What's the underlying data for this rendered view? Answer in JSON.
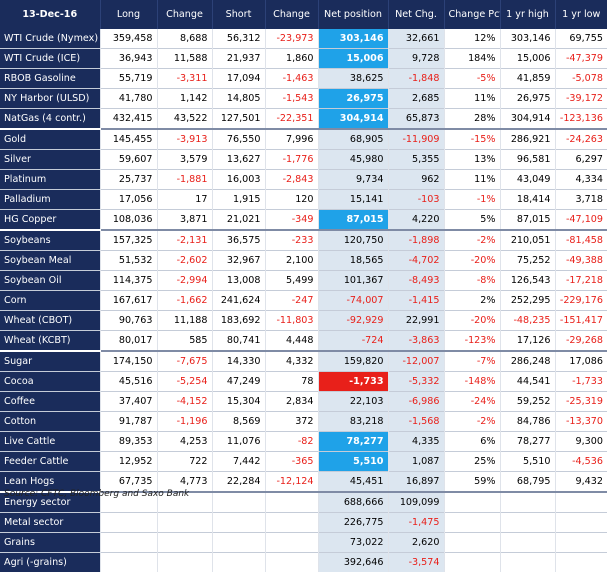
{
  "table": {
    "date": "13-Dec-16",
    "columns": [
      "Long",
      "Change",
      "Short",
      "Change",
      "Net position",
      "Net Chg.",
      "Change Pct",
      "1 yr high",
      "1 yr low"
    ],
    "rows": [
      {
        "name": "WTI Crude (Nymex)",
        "values": [
          "359,458",
          "8,688",
          "56,312",
          "-23,973",
          "303,146",
          "32,661",
          "12%",
          "303,146",
          "69,755"
        ],
        "highlight": "blue"
      },
      {
        "name": "WTI Crude (ICE)",
        "values": [
          "36,943",
          "11,588",
          "21,937",
          "1,860",
          "15,006",
          "9,728",
          "184%",
          "15,006",
          "-47,379"
        ],
        "highlight": "blue"
      },
      {
        "name": "RBOB Gasoline",
        "values": [
          "55,719",
          "-3,311",
          "17,094",
          "-1,463",
          "38,625",
          "-1,848",
          "-5%",
          "41,859",
          "-5,078"
        ]
      },
      {
        "name": "NY Harbor (ULSD)",
        "values": [
          "41,780",
          "1,142",
          "14,805",
          "-1,543",
          "26,975",
          "2,685",
          "11%",
          "26,975",
          "-39,172"
        ],
        "highlight": "blue"
      },
      {
        "name": "NatGas (4 contr.)",
        "values": [
          "432,415",
          "43,522",
          "127,501",
          "-22,351",
          "304,914",
          "65,873",
          "28%",
          "304,914",
          "-123,136"
        ],
        "highlight": "blue"
      },
      {
        "name": "Gold",
        "values": [
          "145,455",
          "-3,913",
          "76,550",
          "7,996",
          "68,905",
          "-11,909",
          "-15%",
          "286,921",
          "-24,263"
        ],
        "group_start": true
      },
      {
        "name": "Silver",
        "values": [
          "59,607",
          "3,579",
          "13,627",
          "-1,776",
          "45,980",
          "5,355",
          "13%",
          "96,581",
          "6,297"
        ]
      },
      {
        "name": "Platinum",
        "values": [
          "25,737",
          "-1,881",
          "16,003",
          "-2,843",
          "9,734",
          "962",
          "11%",
          "43,049",
          "4,334"
        ]
      },
      {
        "name": "Palladium",
        "values": [
          "17,056",
          "17",
          "1,915",
          "120",
          "15,141",
          "-103",
          "-1%",
          "18,414",
          "3,718"
        ]
      },
      {
        "name": "HG Copper",
        "values": [
          "108,036",
          "3,871",
          "21,021",
          "-349",
          "87,015",
          "4,220",
          "5%",
          "87,015",
          "-47,109"
        ],
        "highlight": "blue"
      },
      {
        "name": "Soybeans",
        "values": [
          "157,325",
          "-2,131",
          "36,575",
          "-233",
          "120,750",
          "-1,898",
          "-2%",
          "210,051",
          "-81,458"
        ],
        "group_start": true
      },
      {
        "name": "Soybean Meal",
        "values": [
          "51,532",
          "-2,602",
          "32,967",
          "2,100",
          "18,565",
          "-4,702",
          "-20%",
          "75,252",
          "-49,388"
        ]
      },
      {
        "name": "Soybean Oil",
        "values": [
          "114,375",
          "-2,994",
          "13,008",
          "5,499",
          "101,367",
          "-8,493",
          "-8%",
          "126,543",
          "-17,218"
        ]
      },
      {
        "name": "Corn",
        "values": [
          "167,617",
          "-1,662",
          "241,624",
          "-247",
          "-74,007",
          "-1,415",
          "2%",
          "252,295",
          "-229,176"
        ]
      },
      {
        "name": "Wheat (CBOT)",
        "values": [
          "90,763",
          "11,188",
          "183,692",
          "-11,803",
          "-92,929",
          "22,991",
          "-20%",
          "-48,235",
          "-151,417"
        ]
      },
      {
        "name": "Wheat (KCBT)",
        "values": [
          "80,017",
          "585",
          "80,741",
          "4,448",
          "-724",
          "-3,863",
          "-123%",
          "17,126",
          "-29,268"
        ]
      },
      {
        "name": "Sugar",
        "values": [
          "174,150",
          "-7,675",
          "14,330",
          "4,332",
          "159,820",
          "-12,007",
          "-7%",
          "286,248",
          "17,086"
        ],
        "group_start": true
      },
      {
        "name": "Cocoa",
        "values": [
          "45,516",
          "-5,254",
          "47,249",
          "78",
          "-1,733",
          "-5,332",
          "-148%",
          "44,541",
          "-1,733"
        ],
        "highlight": "red"
      },
      {
        "name": "Coffee",
        "values": [
          "37,407",
          "-4,152",
          "15,304",
          "2,834",
          "22,103",
          "-6,986",
          "-24%",
          "59,252",
          "-25,319"
        ]
      },
      {
        "name": "Cotton",
        "values": [
          "91,787",
          "-1,196",
          "8,569",
          "372",
          "83,218",
          "-1,568",
          "-2%",
          "84,786",
          "-13,370"
        ]
      },
      {
        "name": "Live Cattle",
        "values": [
          "89,353",
          "4,253",
          "11,076",
          "-82",
          "78,277",
          "4,335",
          "6%",
          "78,277",
          "9,300"
        ],
        "highlight": "blue"
      },
      {
        "name": "Feeder Cattle",
        "values": [
          "12,952",
          "722",
          "7,442",
          "-365",
          "5,510",
          "1,087",
          "25%",
          "5,510",
          "-4,536"
        ],
        "highlight": "blue"
      },
      {
        "name": "Lean Hogs",
        "values": [
          "67,735",
          "4,773",
          "22,284",
          "-12,124",
          "45,451",
          "16,897",
          "59%",
          "68,795",
          "9,432"
        ]
      },
      {
        "name": "Energy sector",
        "values": [
          "",
          "",
          "",
          "",
          "688,666",
          "109,099",
          "",
          "",
          ""
        ],
        "group_start": true
      },
      {
        "name": "Metal sector",
        "values": [
          "",
          "",
          "",
          "",
          "226,775",
          "-1,475",
          "",
          "",
          ""
        ]
      },
      {
        "name": "Grains",
        "values": [
          "",
          "",
          "",
          "",
          "73,022",
          "2,620",
          "",
          "",
          ""
        ]
      },
      {
        "name": "Agri (-grains)",
        "values": [
          "",
          "",
          "",
          "",
          "392,646",
          "-3,574",
          "",
          "",
          ""
        ]
      }
    ]
  },
  "source": "Source: CFTC, Bloomberg and Saxo Bank",
  "colors": {
    "header_bg": "#1a2c5b",
    "shade": "#dce6f0",
    "highlight_blue": "#1fa2e8",
    "highlight_red": "#e8201a",
    "negative_text": "#e8201a"
  }
}
